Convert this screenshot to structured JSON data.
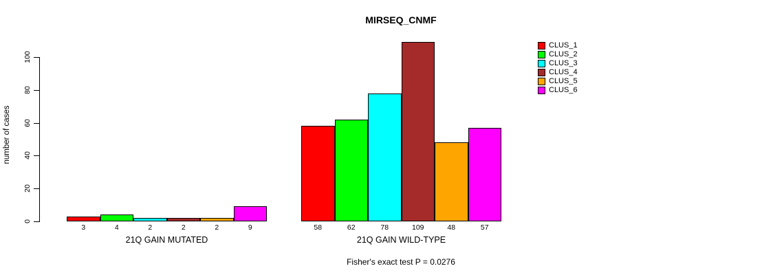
{
  "chart_data": {
    "type": "bar",
    "title": "MIRSEQ_CNMF",
    "ylabel": "number of cases",
    "xlabel": "",
    "ylim": [
      0,
      100
    ],
    "yticks": [
      0,
      20,
      40,
      60,
      80,
      100
    ],
    "grid": false,
    "legend_position": "right",
    "legend": [
      {
        "label": "CLUS_1",
        "color": "#FF0000"
      },
      {
        "label": "CLUS_2",
        "color": "#00FF00"
      },
      {
        "label": "CLUS_3",
        "color": "#00FFFF"
      },
      {
        "label": "CLUS_4",
        "color": "#A52A2A"
      },
      {
        "label": "CLUS_5",
        "color": "#FFA500"
      },
      {
        "label": "CLUS_6",
        "color": "#FF00FF"
      }
    ],
    "groups": [
      {
        "label": "21Q GAIN MUTATED",
        "values": [
          3,
          4,
          2,
          2,
          2,
          9
        ]
      },
      {
        "label": "21Q GAIN WILD-TYPE",
        "values": [
          58,
          62,
          78,
          109,
          48,
          57
        ]
      }
    ],
    "bar_value_labels": true,
    "annotation": "Fisher's exact test P = 0.0276",
    "text_color": "#000000",
    "background_color": "#FFFFFF"
  }
}
